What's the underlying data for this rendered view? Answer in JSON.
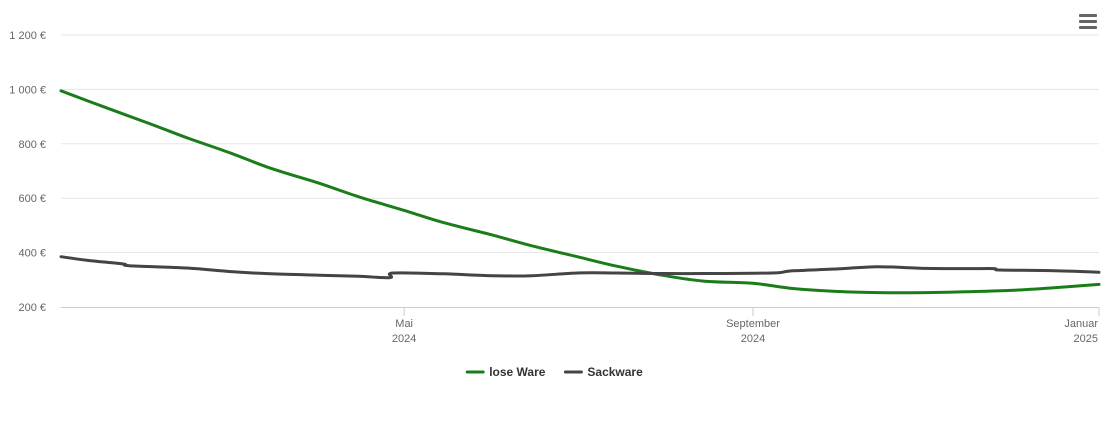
{
  "menu": {
    "icon": "hamburger-menu-icon"
  },
  "chart_data": {
    "type": "line",
    "title": "",
    "xlabel": "",
    "ylabel": "",
    "ylim": [
      200,
      1200
    ],
    "y_ticks": [
      200,
      400,
      600,
      800,
      1000,
      1200
    ],
    "y_tick_labels": [
      "200 €",
      "400 €",
      "600 €",
      "800 €",
      "1 000 €",
      "1 200 €"
    ],
    "x_range": [
      "2024-01-01",
      "2025-01-01"
    ],
    "x_ticks": [
      {
        "date": "2024-05-01",
        "line1": "Mai",
        "line2": "2024"
      },
      {
        "date": "2024-09-01",
        "line1": "September",
        "line2": "2024"
      },
      {
        "date": "2025-01-01",
        "line1": "Januar",
        "line2": "2025"
      }
    ],
    "grid": true,
    "legend_position": "bottom-center",
    "series": [
      {
        "name": "lose Ware",
        "color": "#1a7d1a",
        "points": [
          [
            "2024-01-01",
            995
          ],
          [
            "2024-01-15",
            940
          ],
          [
            "2024-02-01",
            875
          ],
          [
            "2024-02-15",
            820
          ],
          [
            "2024-03-01",
            765
          ],
          [
            "2024-03-15",
            710
          ],
          [
            "2024-04-01",
            655
          ],
          [
            "2024-04-15",
            605
          ],
          [
            "2024-05-01",
            555
          ],
          [
            "2024-05-15",
            510
          ],
          [
            "2024-06-01",
            465
          ],
          [
            "2024-06-15",
            425
          ],
          [
            "2024-07-01",
            385
          ],
          [
            "2024-07-15",
            350
          ],
          [
            "2024-08-01",
            315
          ],
          [
            "2024-08-15",
            295
          ],
          [
            "2024-09-01",
            287
          ],
          [
            "2024-09-15",
            268
          ],
          [
            "2024-10-01",
            257
          ],
          [
            "2024-10-15",
            253
          ],
          [
            "2024-11-01",
            253
          ],
          [
            "2024-11-15",
            256
          ],
          [
            "2024-12-01",
            261
          ],
          [
            "2024-12-15",
            270
          ],
          [
            "2025-01-01",
            283
          ]
        ]
      },
      {
        "name": "Sackware",
        "color": "#444444",
        "points": [
          [
            "2024-01-01",
            385
          ],
          [
            "2024-01-10",
            372
          ],
          [
            "2024-01-23",
            358
          ],
          [
            "2024-01-25",
            352
          ],
          [
            "2024-02-15",
            343
          ],
          [
            "2024-03-01",
            330
          ],
          [
            "2024-03-15",
            322
          ],
          [
            "2024-04-01",
            317
          ],
          [
            "2024-04-15",
            313
          ],
          [
            "2024-04-26",
            308
          ],
          [
            "2024-04-27",
            325
          ],
          [
            "2024-05-15",
            322
          ],
          [
            "2024-06-01",
            315
          ],
          [
            "2024-06-15",
            315
          ],
          [
            "2024-07-01",
            325
          ],
          [
            "2024-07-15",
            325
          ],
          [
            "2024-08-01",
            323
          ],
          [
            "2024-08-15",
            323
          ],
          [
            "2024-09-01",
            324
          ],
          [
            "2024-09-10",
            326
          ],
          [
            "2024-09-15",
            333
          ],
          [
            "2024-10-01",
            340
          ],
          [
            "2024-10-15",
            348
          ],
          [
            "2024-11-01",
            342
          ],
          [
            "2024-11-15",
            341
          ],
          [
            "2024-11-25",
            341
          ],
          [
            "2024-11-27",
            336
          ],
          [
            "2024-12-15",
            334
          ],
          [
            "2025-01-01",
            328
          ]
        ]
      }
    ]
  }
}
